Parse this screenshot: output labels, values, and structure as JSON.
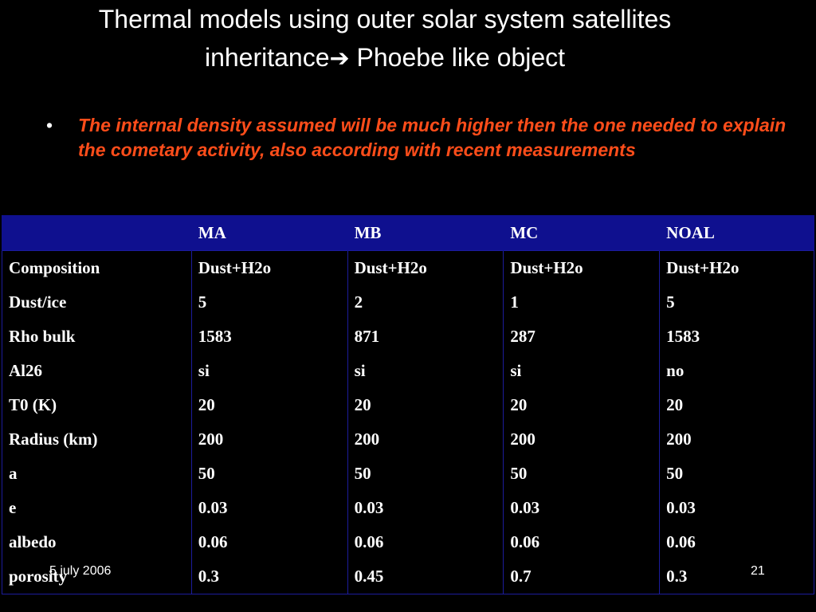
{
  "slide": {
    "title_line1": "Thermal models using outer solar system satellites",
    "title_line2_part1": "inheritance",
    "title_arrow": "➔",
    "title_line2_part2": " Phoebe like object",
    "bullet_symbol": "•",
    "bullet_text": "The internal density  assumed will be much higher then the one needed to explain the cometary activity, also according with recent measurements",
    "bullet_color": "#ff4d1a"
  },
  "table": {
    "headers": [
      "",
      "MA",
      "MB",
      "MC",
      "NOAL"
    ],
    "header_bg": "#0f108f",
    "rows": [
      [
        "Composition",
        "Dust+H2o",
        "Dust+H2o",
        "Dust+H2o",
        "Dust+H2o"
      ],
      [
        "Dust/ice",
        "5",
        "2",
        "1",
        "5"
      ],
      [
        "Rho bulk",
        "1583",
        "871",
        "287",
        "1583"
      ],
      [
        "Al26",
        "si",
        "si",
        "si",
        "no"
      ],
      [
        "T0 (K)",
        "20",
        "20",
        "20",
        "20"
      ],
      [
        "Radius (km)",
        "200",
        "200",
        "200",
        "200"
      ],
      [
        "a",
        "50",
        "50",
        "50",
        "50"
      ],
      [
        "e",
        "0.03",
        "0.03",
        "0.03",
        "0.03"
      ],
      [
        "albedo",
        "0.06",
        "0.06",
        "0.06",
        "0.06"
      ],
      [
        "porosity",
        "0.3",
        "0.45",
        "0.7",
        "0.3"
      ]
    ]
  },
  "footer": {
    "date": "5 july 2006",
    "page": "21"
  }
}
